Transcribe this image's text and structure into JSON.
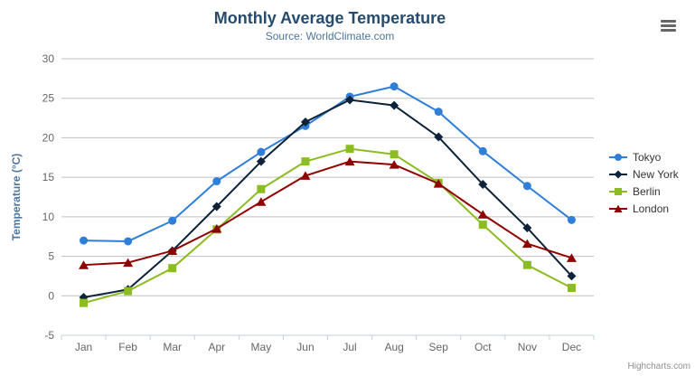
{
  "header": {
    "title": "Monthly Average Temperature",
    "subtitle": "Source: WorldClimate.com"
  },
  "credits": {
    "label": "Highcharts.com"
  },
  "chart_data": {
    "type": "line",
    "title": "Monthly Average Temperature",
    "subtitle": "Source: WorldClimate.com",
    "categories": [
      "Jan",
      "Feb",
      "Mar",
      "Apr",
      "May",
      "Jun",
      "Jul",
      "Aug",
      "Sep",
      "Oct",
      "Nov",
      "Dec"
    ],
    "series": [
      {
        "name": "Tokyo",
        "color": "#2f7ed8",
        "marker": "circle",
        "values": [
          7.0,
          6.9,
          9.5,
          14.5,
          18.2,
          21.5,
          25.2,
          26.5,
          23.3,
          18.3,
          13.9,
          9.6
        ]
      },
      {
        "name": "New York",
        "color": "#0d233a",
        "marker": "diamond",
        "values": [
          -0.2,
          0.8,
          5.7,
          11.3,
          17.0,
          22.0,
          24.8,
          24.1,
          20.1,
          14.1,
          8.6,
          2.5
        ]
      },
      {
        "name": "Berlin",
        "color": "#8bbc21",
        "marker": "square",
        "values": [
          -0.9,
          0.6,
          3.5,
          8.4,
          13.5,
          17.0,
          18.6,
          17.9,
          14.3,
          9.0,
          3.9,
          1.0
        ]
      },
      {
        "name": "London",
        "color": "#910000",
        "marker": "triangle",
        "values": [
          3.9,
          4.2,
          5.7,
          8.5,
          11.9,
          15.2,
          17.0,
          16.6,
          14.2,
          10.3,
          6.6,
          4.8
        ]
      }
    ],
    "xlabel": "",
    "ylabel": "Temperature (°C)",
    "ylim": [
      -5,
      30
    ],
    "yticks": [
      30,
      25,
      20,
      15,
      10,
      5,
      0,
      -5
    ],
    "grid": true,
    "legend_position": "right",
    "axis_colors": {
      "grid_line": "#c0c0c0",
      "axis_line": "#c0d0e0",
      "tick_label": "#666666",
      "axis_title": "#4d759e"
    }
  }
}
